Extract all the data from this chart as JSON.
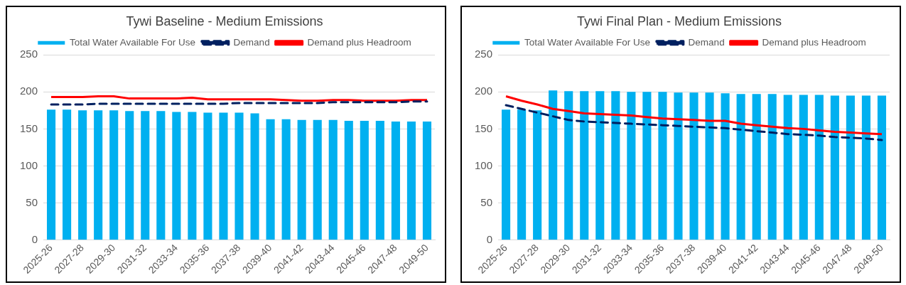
{
  "chart_data": [
    {
      "type": "bar",
      "title": "Tywi Baseline - Medium Emissions",
      "categories": [
        "2025-26",
        null,
        "2027-28",
        null,
        "2029-30",
        null,
        "2031-32",
        null,
        "2033-34",
        null,
        "2035-36",
        null,
        "2037-38",
        null,
        "2039-40",
        null,
        "2041-42",
        null,
        "2043-44",
        null,
        "2045-46",
        null,
        "2047-48",
        null,
        "2049-50"
      ],
      "series": [
        {
          "name": "Total Water Available For Use",
          "color": "#00b0f0",
          "values": [
            176,
            176,
            175,
            175,
            175,
            174,
            174,
            174,
            173,
            173,
            172,
            172,
            172,
            171,
            163,
            163,
            162,
            162,
            162,
            161,
            161,
            161,
            160,
            160,
            160
          ]
        },
        {
          "name": "Demand",
          "type": "line",
          "color": "#002060",
          "line_style": "dashed",
          "values": [
            183,
            183,
            183,
            184,
            184,
            184,
            184,
            184,
            184,
            184,
            184,
            184,
            185,
            185,
            185,
            185,
            185,
            185,
            186,
            186,
            186,
            186,
            186,
            187,
            187
          ]
        },
        {
          "name": "Demand plus Headroom",
          "type": "line",
          "color": "#ff0000",
          "line_style": "solid",
          "values": [
            193,
            193,
            193,
            194,
            194,
            191,
            191,
            191,
            191,
            192,
            190,
            190,
            190,
            190,
            190,
            189,
            188,
            188,
            189,
            189,
            188,
            188,
            188,
            189,
            189
          ]
        }
      ],
      "ylim": [
        0,
        250
      ],
      "yticks": [
        0,
        50,
        100,
        150,
        200,
        250
      ],
      "grid": "y",
      "legend": "top",
      "marker": "none"
    },
    {
      "type": "bar",
      "title": "Tywi Final Plan - Medium Emissions",
      "categories": [
        "2025-26",
        null,
        "2027-28",
        null,
        "2029-30",
        null,
        "2031-32",
        null,
        "2033-34",
        null,
        "2035-36",
        null,
        "2037-38",
        null,
        "2039-40",
        null,
        "2041-42",
        null,
        "2043-44",
        null,
        "2045-46",
        null,
        "2047-48",
        null,
        "2049-50"
      ],
      "series": [
        {
          "name": "Total Water Available For Use",
          "color": "#00b0f0",
          "values": [
            176,
            176,
            175,
            202,
            201,
            201,
            201,
            201,
            200,
            200,
            200,
            199,
            199,
            199,
            198,
            197,
            197,
            197,
            196,
            196,
            196,
            195,
            195,
            195,
            195
          ]
        },
        {
          "name": "Demand",
          "type": "line",
          "color": "#002060",
          "line_style": "dashed",
          "values": [
            182,
            177,
            172,
            167,
            162,
            160,
            159,
            158,
            157,
            156,
            155,
            154,
            153,
            152,
            151,
            149,
            147,
            145,
            143,
            142,
            141,
            139,
            138,
            137,
            135
          ]
        },
        {
          "name": "Demand plus Headroom",
          "type": "line",
          "color": "#ff0000",
          "line_style": "solid",
          "values": [
            194,
            188,
            183,
            177,
            174,
            171,
            170,
            169,
            168,
            166,
            164,
            163,
            162,
            161,
            161,
            157,
            155,
            153,
            151,
            150,
            148,
            146,
            145,
            144,
            143
          ]
        }
      ],
      "ylim": [
        0,
        250
      ],
      "yticks": [
        0,
        50,
        100,
        150,
        200,
        250
      ],
      "grid": "y",
      "legend": "top",
      "marker": "none"
    }
  ]
}
